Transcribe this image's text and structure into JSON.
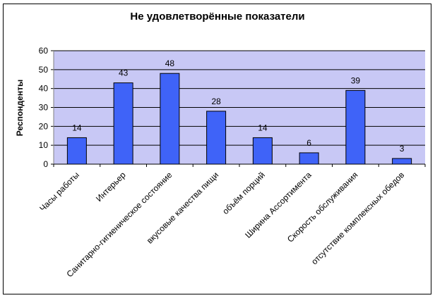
{
  "chart_data": {
    "type": "bar",
    "title": "Не удовлетворённые показатели",
    "xlabel": "",
    "ylabel": "Респонденты",
    "ylim": [
      0,
      60
    ],
    "yticks": [
      0,
      10,
      20,
      30,
      40,
      50,
      60
    ],
    "categories": [
      "Часы работы",
      "Интерьер",
      "Санитарно-гигиеническое состояние",
      "вкусовые качества пищи",
      "объём порций",
      "Ширина Ассортимента",
      "Скорость обслуживания",
      "отсутствие комплексных обедов"
    ],
    "values": [
      14,
      43,
      48,
      28,
      14,
      6,
      39,
      3
    ],
    "grid": true,
    "legend": "none",
    "colors": {
      "plot_bg": "#c8c8f5",
      "bar": "#3f63f8",
      "gridline": "#000000",
      "axis": "#808080"
    }
  }
}
